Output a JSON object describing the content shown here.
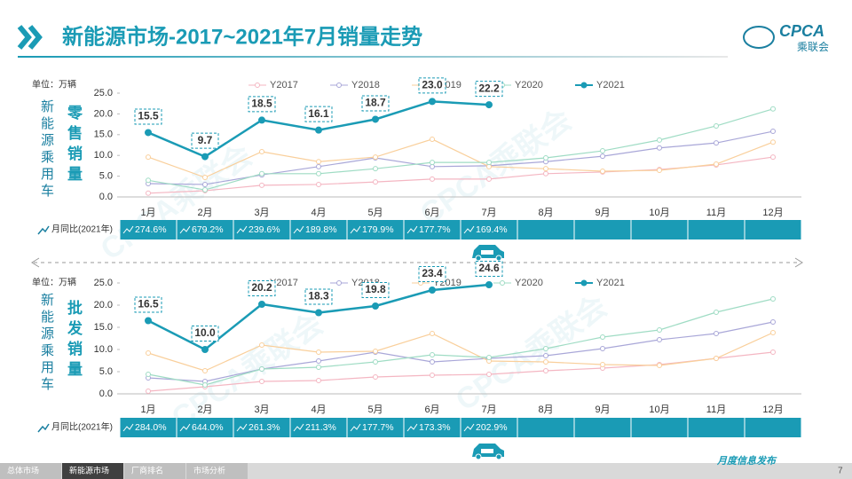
{
  "header": {
    "title": "新能源市场-2017~2021年7月销量走势",
    "logo": "CPCA",
    "logo_sub": "乘联会"
  },
  "watermark": "CPCA乘联会",
  "chart_data": [
    {
      "type": "line",
      "unit": "单位：万辆",
      "category_label": "新能源乘用车",
      "metric_label": "零售销量",
      "categories": [
        "1月",
        "2月",
        "3月",
        "4月",
        "5月",
        "6月",
        "7月",
        "8月",
        "9月",
        "10月",
        "11月",
        "12月"
      ],
      "ylim": [
        0,
        25
      ],
      "yticks": [
        {
          "value": 0,
          "label": "0.0"
        },
        {
          "value": 5,
          "label": "5.0"
        },
        {
          "value": 10,
          "label": "10.0"
        },
        {
          "value": 15,
          "label": "15.0"
        },
        {
          "value": 20,
          "label": "20.0"
        },
        {
          "value": 25,
          "label": "25.0"
        }
      ],
      "grid": false,
      "series": [
        {
          "name": "Y2017",
          "color": "#f4b6c2",
          "values": [
            0.9,
            1.5,
            2.8,
            3.0,
            3.6,
            4.3,
            4.3,
            5.6,
            6.0,
            6.6,
            7.7,
            9.6
          ]
        },
        {
          "name": "Y2018",
          "color": "#a9a7d8",
          "values": [
            3.2,
            3.0,
            5.3,
            7.3,
            9.4,
            7.3,
            7.5,
            8.5,
            9.8,
            11.8,
            13.0,
            15.8
          ]
        },
        {
          "name": "Y2019",
          "color": "#f9cf9b",
          "values": [
            9.6,
            4.7,
            10.9,
            8.5,
            9.6,
            13.9,
            7.3,
            6.8,
            6.2,
            6.4,
            7.9,
            13.2
          ]
        },
        {
          "name": "Y2020",
          "color": "#9fdcc4",
          "values": [
            4.0,
            1.7,
            5.6,
            5.6,
            6.8,
            8.3,
            8.3,
            9.4,
            11.1,
            13.7,
            17.1,
            21.2
          ]
        },
        {
          "name": "Y2021",
          "color": "#1a9bb5",
          "values": [
            15.5,
            9.7,
            18.5,
            16.1,
            18.7,
            23.0,
            22.2,
            null,
            null,
            null,
            null,
            null
          ],
          "value_labels": [
            "15.5",
            "9.7",
            "18.5",
            "16.1",
            "18.7",
            "23.0",
            "22.2",
            null,
            null,
            null,
            null,
            null
          ]
        }
      ],
      "yoy_label": "月同比(2021年)",
      "yoy": [
        "274.6%",
        "679.2%",
        "239.6%",
        "189.8%",
        "179.9%",
        "177.7%",
        "169.4%",
        null,
        null,
        null,
        null,
        null
      ]
    },
    {
      "type": "line",
      "unit": "单位：万辆",
      "category_label": "新能源乘用车",
      "metric_label": "批发销量",
      "categories": [
        "1月",
        "2月",
        "3月",
        "4月",
        "5月",
        "6月",
        "7月",
        "8月",
        "9月",
        "10月",
        "11月",
        "12月"
      ],
      "ylim": [
        0,
        25
      ],
      "yticks": [
        {
          "value": 0,
          "label": "0.0"
        },
        {
          "value": 5,
          "label": "5.0"
        },
        {
          "value": 10,
          "label": "10.0"
        },
        {
          "value": 15,
          "label": "15.0"
        },
        {
          "value": 20,
          "label": "20.0"
        },
        {
          "value": 25,
          "label": "25.0"
        }
      ],
      "grid": false,
      "series": [
        {
          "name": "Y2017",
          "color": "#f4b6c2",
          "values": [
            0.6,
            1.6,
            2.8,
            3.0,
            3.8,
            4.2,
            4.4,
            5.2,
            5.8,
            6.6,
            8.0,
            9.4
          ]
        },
        {
          "name": "Y2018",
          "color": "#a9a7d8",
          "values": [
            3.6,
            2.8,
            5.6,
            7.4,
            9.4,
            7.2,
            8.0,
            8.6,
            10.2,
            12.2,
            13.6,
            16.2
          ]
        },
        {
          "name": "Y2019",
          "color": "#f9cf9b",
          "values": [
            9.2,
            5.2,
            11.0,
            9.4,
            9.6,
            13.6,
            7.4,
            7.2,
            6.6,
            6.4,
            8.0,
            13.8
          ]
        },
        {
          "name": "Y2020",
          "color": "#9fdcc4",
          "values": [
            4.4,
            2.0,
            5.6,
            6.0,
            7.2,
            8.8,
            8.2,
            10.2,
            12.8,
            14.4,
            18.4,
            21.4
          ]
        },
        {
          "name": "Y2021",
          "color": "#1a9bb5",
          "values": [
            16.5,
            10.0,
            20.2,
            18.3,
            19.8,
            23.4,
            24.6,
            null,
            null,
            null,
            null,
            null
          ],
          "value_labels": [
            "16.5",
            "10.0",
            "20.2",
            "18.3",
            "19.8",
            "23.4",
            "24.6",
            null,
            null,
            null,
            null,
            null
          ]
        }
      ],
      "yoy_label": "月同比(2021年)",
      "yoy": [
        "284.0%",
        "644.0%",
        "261.3%",
        "211.3%",
        "177.7%",
        "173.3%",
        "202.9%",
        null,
        null,
        null,
        null,
        null
      ]
    }
  ],
  "footer": {
    "tabs": [
      "总体市场",
      "新能源市场",
      "厂商排名",
      "市场分析"
    ],
    "active": 1,
    "note": "月度信息发布",
    "page": "7"
  }
}
